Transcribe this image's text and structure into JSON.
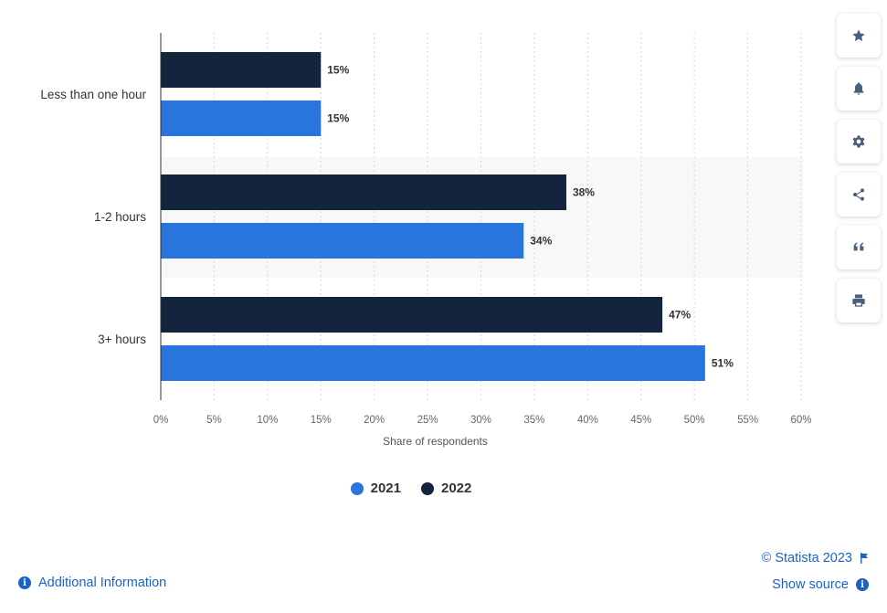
{
  "chart_data": {
    "type": "bar",
    "orientation": "horizontal",
    "categories": [
      "Less than one hour",
      "1-2 hours",
      "3+ hours"
    ],
    "series": [
      {
        "name": "2022",
        "values": [
          15,
          38,
          47
        ],
        "color": "#13253d"
      },
      {
        "name": "2021",
        "values": [
          15,
          34,
          51
        ],
        "color": "#2876dd"
      }
    ],
    "value_suffix": "%",
    "xlabel": "Share of respondents",
    "xlim": [
      0,
      60
    ],
    "xticks": [
      0,
      5,
      10,
      15,
      20,
      25,
      30,
      35,
      40,
      45,
      50,
      55,
      60
    ],
    "xtick_labels": [
      "0%",
      "5%",
      "10%",
      "15%",
      "20%",
      "25%",
      "30%",
      "35%",
      "40%",
      "45%",
      "50%",
      "55%",
      "60%"
    ],
    "grid": "vertical dotted",
    "legend_position": "bottom-center",
    "legend_order": [
      "2021",
      "2022"
    ]
  },
  "footer": {
    "additional_info": "Additional Information",
    "copyright": "© Statista 2023",
    "show_source": "Show source"
  },
  "toolbar": [
    {
      "name": "favorite-button",
      "icon": "star-icon"
    },
    {
      "name": "notification-button",
      "icon": "bell-icon"
    },
    {
      "name": "settings-button",
      "icon": "gear-icon"
    },
    {
      "name": "share-button",
      "icon": "share-icon"
    },
    {
      "name": "cite-button",
      "icon": "quote-icon"
    },
    {
      "name": "print-button",
      "icon": "print-icon"
    }
  ]
}
